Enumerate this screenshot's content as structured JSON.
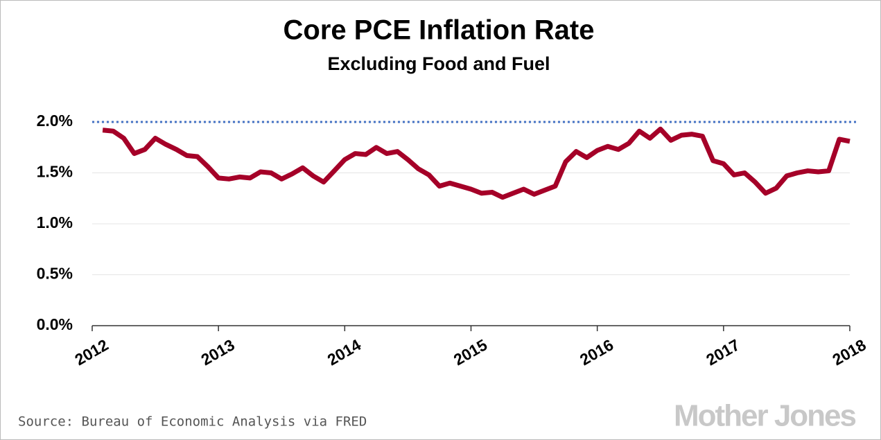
{
  "chart_data": {
    "type": "line",
    "title": "Core PCE Inflation Rate",
    "subtitle": "Excluding Food and Fuel",
    "source": "Source: Bureau of Economic Analysis via FRED",
    "logo": "Mother Jones",
    "x": [
      2012.083,
      2012.167,
      2012.25,
      2012.333,
      2012.417,
      2012.5,
      2012.583,
      2012.667,
      2012.75,
      2012.833,
      2012.917,
      2013,
      2013.083,
      2013.167,
      2013.25,
      2013.333,
      2013.417,
      2013.5,
      2013.583,
      2013.667,
      2013.75,
      2013.833,
      2013.917,
      2014,
      2014.083,
      2014.167,
      2014.25,
      2014.333,
      2014.417,
      2014.5,
      2014.583,
      2014.667,
      2014.75,
      2014.833,
      2014.917,
      2015,
      2015.083,
      2015.167,
      2015.25,
      2015.333,
      2015.417,
      2015.5,
      2015.583,
      2015.667,
      2015.75,
      2015.833,
      2015.917,
      2016,
      2016.083,
      2016.167,
      2016.25,
      2016.333,
      2016.417,
      2016.5,
      2016.583,
      2016.667,
      2016.75,
      2016.833,
      2016.917,
      2017,
      2017.083,
      2017.167,
      2017.25,
      2017.333,
      2017.417,
      2017.5,
      2017.583,
      2017.667,
      2017.75,
      2017.833,
      2017.917,
      2018
    ],
    "series": [
      {
        "color": "#a50028",
        "values": [
          1.92,
          1.91,
          1.84,
          1.69,
          1.73,
          1.84,
          1.78,
          1.73,
          1.67,
          1.66,
          1.56,
          1.45,
          1.44,
          1.46,
          1.45,
          1.51,
          1.5,
          1.44,
          1.49,
          1.55,
          1.47,
          1.41,
          1.52,
          1.63,
          1.69,
          1.68,
          1.75,
          1.69,
          1.71,
          1.63,
          1.54,
          1.48,
          1.37,
          1.4,
          1.37,
          1.34,
          1.3,
          1.31,
          1.26,
          1.3,
          1.34,
          1.29,
          1.33,
          1.37,
          1.61,
          1.71,
          1.65,
          1.72,
          1.76,
          1.73,
          1.79,
          1.91,
          1.84,
          1.93,
          1.82,
          1.87,
          1.88,
          1.86,
          1.62,
          1.59,
          1.48,
          1.5,
          1.41,
          1.3,
          1.35,
          1.47,
          1.5,
          1.52,
          1.51,
          1.52,
          1.83,
          1.81
        ]
      }
    ],
    "xlim": [
      2012,
      2018
    ],
    "xticks": [
      2012,
      2013,
      2014,
      2015,
      2016,
      2017,
      2018
    ],
    "ylim": [
      0,
      2
    ],
    "yticks": [
      {
        "value": 0,
        "label": "0.0%"
      },
      {
        "value": 0.5,
        "label": "0.5%"
      },
      {
        "value": 1,
        "label": "1.0%"
      },
      {
        "value": 1.5,
        "label": "1.5%"
      },
      {
        "value": 2,
        "label": "2.0%"
      }
    ],
    "grid": true,
    "reference_line": {
      "value": 2,
      "color": "#4472c4"
    }
  }
}
